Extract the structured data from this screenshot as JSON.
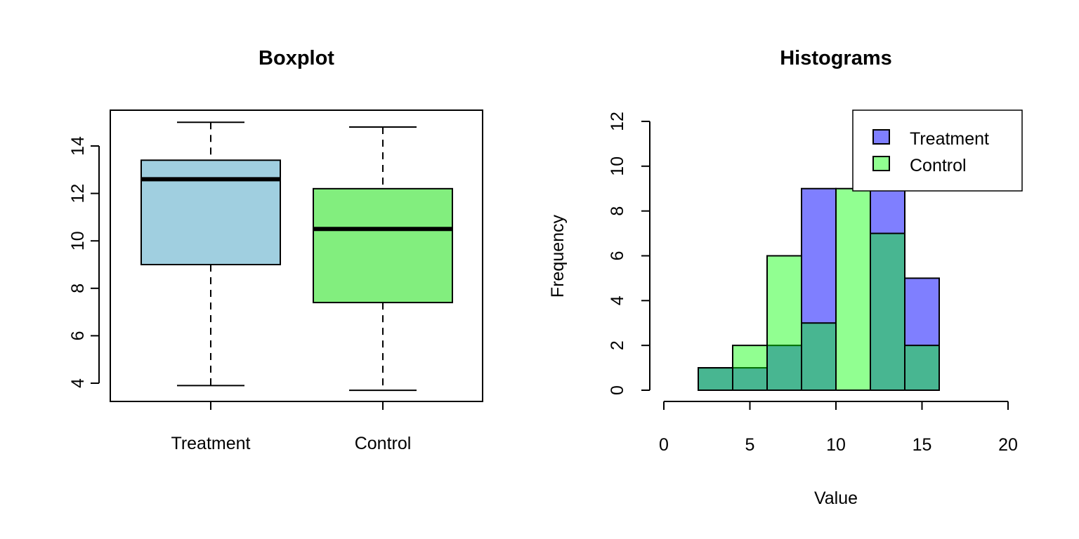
{
  "chart_data": [
    {
      "type": "boxplot",
      "title": "Boxplot",
      "xlabel": "",
      "ylabel": "",
      "categories": [
        "Treatment",
        "Control"
      ],
      "colors": [
        "#a0cfe0",
        "#82ee7e"
      ],
      "ylim": [
        3.2,
        15.5
      ],
      "yticks": [
        4,
        6,
        8,
        10,
        12,
        14
      ],
      "series": [
        {
          "name": "Treatment",
          "min": 3.9,
          "q1": 9.0,
          "median": 12.6,
          "q3": 13.4,
          "max": 15.0
        },
        {
          "name": "Control",
          "min": 3.7,
          "q1": 7.4,
          "median": 10.5,
          "q3": 12.2,
          "max": 14.8
        }
      ]
    },
    {
      "type": "histogram",
      "title": "Histograms",
      "xlabel": "Value",
      "ylabel": "Frequency",
      "xlim": [
        0,
        20
      ],
      "ylim": [
        0,
        12
      ],
      "xticks": [
        0,
        5,
        10,
        15,
        20
      ],
      "yticks": [
        0,
        2,
        4,
        6,
        8,
        10,
        12
      ],
      "bin_edges": [
        2,
        4,
        6,
        8,
        10,
        12,
        14,
        16
      ],
      "series": [
        {
          "name": "Treatment",
          "color": "#0000ff80",
          "counts": [
            1,
            1,
            2,
            9,
            0,
            9,
            5
          ]
        },
        {
          "name": "Control",
          "color": "#00ff0080",
          "counts": [
            1,
            2,
            6,
            3,
            9,
            7,
            2
          ]
        }
      ],
      "legend": {
        "position": "top-right",
        "items": [
          "Treatment",
          "Control"
        ]
      }
    }
  ]
}
